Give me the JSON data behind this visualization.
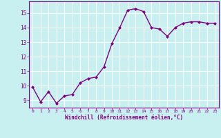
{
  "x": [
    0,
    1,
    2,
    3,
    4,
    5,
    6,
    7,
    8,
    9,
    10,
    11,
    12,
    13,
    14,
    15,
    16,
    17,
    18,
    19,
    20,
    21,
    22,
    23
  ],
  "y": [
    9.9,
    8.9,
    9.6,
    8.8,
    9.3,
    9.4,
    10.2,
    10.5,
    10.6,
    11.3,
    12.9,
    14.0,
    15.2,
    15.3,
    15.1,
    14.0,
    13.9,
    13.4,
    14.0,
    14.3,
    14.4,
    14.4,
    14.3,
    14.3
  ],
  "line_color": "#800080",
  "marker": "D",
  "marker_size": 2.0,
  "bg_color": "#c8f0f0",
  "grid_color": "#b0d8d8",
  "xlabel": "Windchill (Refroidissement éolien,°C)",
  "xlabel_color": "#800080",
  "tick_color": "#800080",
  "ylim": [
    8.5,
    15.8
  ],
  "xlim": [
    -0.5,
    23.5
  ],
  "yticks": [
    9,
    10,
    11,
    12,
    13,
    14,
    15
  ],
  "xticks": [
    0,
    1,
    2,
    3,
    4,
    5,
    6,
    7,
    8,
    9,
    10,
    11,
    12,
    13,
    14,
    15,
    16,
    17,
    18,
    19,
    20,
    21,
    22,
    23
  ],
  "linewidth": 1.0,
  "spine_color": "#800080"
}
